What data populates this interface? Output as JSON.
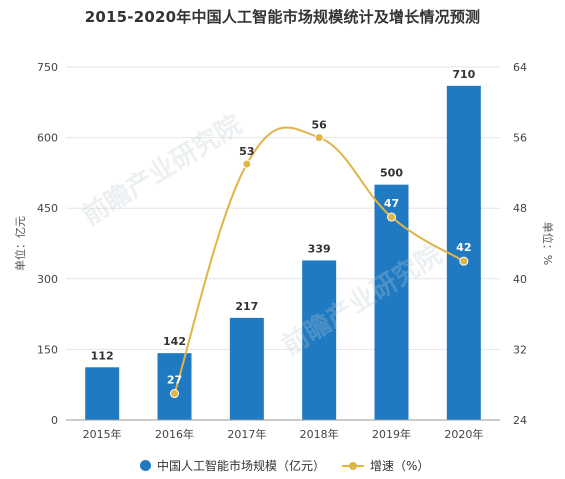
{
  "chart_data": {
    "type": "bar",
    "title": "2015-2020年中国人工智能市场规模统计及增长情况预测",
    "categories": [
      "2015年",
      "2016年",
      "2017年",
      "2018年",
      "2019年",
      "2020年"
    ],
    "series": [
      {
        "name": "中国人工智能市场规模（亿元）",
        "type": "bar",
        "axis": "left",
        "values": [
          112,
          142,
          217,
          339,
          500,
          710
        ],
        "color": "#1f7ac2"
      },
      {
        "name": "增速（%）",
        "type": "line",
        "axis": "right",
        "values": [
          null,
          27,
          53,
          56,
          47,
          42
        ],
        "color": "#e0b445"
      }
    ],
    "ylabel": "单位：亿元",
    "y2label": "单位：%",
    "ylim": [
      0,
      750
    ],
    "yticks": [
      0,
      150,
      300,
      450,
      600,
      750
    ],
    "y2lim": [
      24,
      64
    ],
    "y2ticks": [
      24,
      32,
      40,
      48,
      56,
      64
    ],
    "grid": true,
    "legend_position": "bottom"
  },
  "watermarks": [
    "前瞻产业研究院",
    "前瞻产业研究院"
  ]
}
